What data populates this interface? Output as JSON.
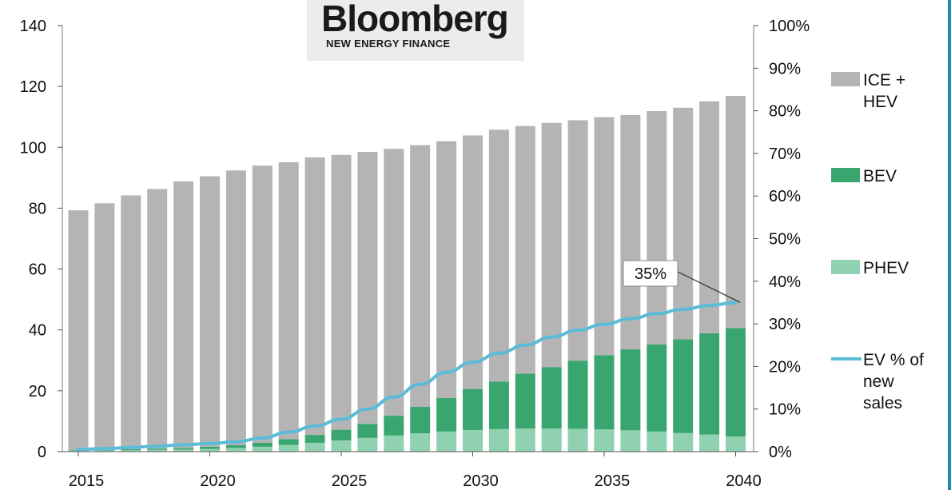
{
  "logo": {
    "main": "Bloomberg",
    "sub": "NEW ENERGY FINANCE"
  },
  "colors": {
    "ice_hev": "#b4b4b4",
    "bev": "#3aa66f",
    "phev": "#8fd1b0",
    "ev_share": "#5bbcd8"
  },
  "chart_data": {
    "type": "bar",
    "stacked": true,
    "x": [
      2015,
      2016,
      2017,
      2018,
      2019,
      2020,
      2021,
      2022,
      2023,
      2024,
      2025,
      2026,
      2027,
      2028,
      2029,
      2030,
      2031,
      2032,
      2033,
      2034,
      2035,
      2036,
      2037,
      2038,
      2039,
      2040
    ],
    "x_ticks": [
      "2015",
      "2020",
      "2025",
      "2030",
      "2035",
      "2040"
    ],
    "y_left": {
      "ticks": [
        "0",
        "20",
        "40",
        "60",
        "80",
        "100",
        "120",
        "140"
      ],
      "range": [
        0,
        140
      ]
    },
    "y_right": {
      "ticks": [
        "0%",
        "10%",
        "20%",
        "30%",
        "40%",
        "50%",
        "60%",
        "70%",
        "80%",
        "90%",
        "100%"
      ],
      "range": [
        0,
        100
      ]
    },
    "series": [
      {
        "name": "PHEV",
        "axis": "left",
        "type": "bar",
        "color": "#8fd1b0",
        "values": [
          0.3,
          0.4,
          0.5,
          0.6,
          0.7,
          0.9,
          1.2,
          1.6,
          2.2,
          2.9,
          3.7,
          4.5,
          5.3,
          6.0,
          6.6,
          7.1,
          7.4,
          7.6,
          7.6,
          7.5,
          7.3,
          7.0,
          6.6,
          6.1,
          5.6,
          5.0
        ]
      },
      {
        "name": "BEV",
        "axis": "left",
        "type": "bar",
        "color": "#3aa66f",
        "values": [
          0.2,
          0.2,
          0.3,
          0.4,
          0.5,
          0.7,
          0.9,
          1.3,
          1.9,
          2.6,
          3.5,
          4.6,
          6.5,
          8.7,
          11.0,
          13.5,
          15.6,
          18.0,
          20.2,
          22.4,
          24.4,
          26.6,
          28.6,
          30.8,
          33.3,
          35.6
        ]
      },
      {
        "name": "ICE +\nHEV",
        "axis": "left",
        "type": "bar",
        "color": "#b4b4b4",
        "values": [
          78.8,
          81.0,
          83.4,
          85.3,
          87.6,
          88.9,
          90.3,
          91.1,
          91.0,
          91.2,
          90.3,
          89.4,
          87.7,
          86.0,
          84.4,
          83.3,
          82.8,
          81.4,
          80.2,
          79.0,
          78.2,
          77.0,
          76.7,
          76.1,
          76.2,
          76.3
        ]
      },
      {
        "name": "EV % of\nnew\nsales",
        "axis": "right",
        "type": "line",
        "color": "#5bbcd8",
        "values": [
          0.5,
          0.7,
          1.0,
          1.3,
          1.6,
          1.9,
          2.3,
          3.2,
          4.6,
          6.0,
          7.6,
          10.0,
          12.8,
          15.8,
          18.6,
          21.0,
          23.1,
          25.0,
          26.9,
          28.5,
          29.9,
          31.2,
          32.4,
          33.4,
          34.3,
          35.0
        ]
      }
    ],
    "annotation": {
      "text": "35%",
      "x": 2040,
      "y": 35,
      "axis": "right"
    },
    "legend_position": "right"
  }
}
